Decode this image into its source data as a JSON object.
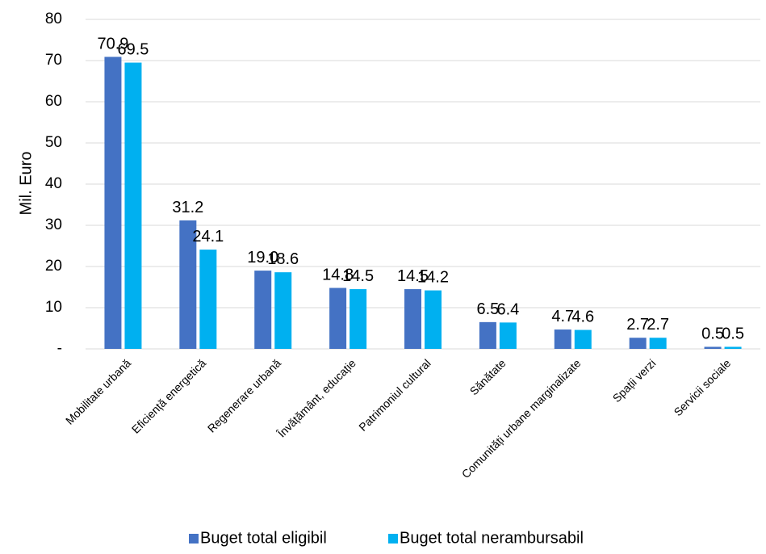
{
  "chart_data": {
    "type": "bar",
    "title": "",
    "ylabel": "Mil. Euro",
    "xlabel": "",
    "ylim": [
      0,
      80
    ],
    "yticks": [
      {
        "value": 0,
        "label": "-"
      },
      {
        "value": 10,
        "label": "10"
      },
      {
        "value": 20,
        "label": "20"
      },
      {
        "value": 30,
        "label": "30"
      },
      {
        "value": 40,
        "label": "40"
      },
      {
        "value": 50,
        "label": "50"
      },
      {
        "value": 60,
        "label": "60"
      },
      {
        "value": 70,
        "label": "70"
      },
      {
        "value": 80,
        "label": "80"
      }
    ],
    "grid": true,
    "legend_position": "bottom",
    "categories": [
      "Mobilitate urbană",
      "Eficiență energetică",
      "Regenerare urbană",
      "Învățământ, educație",
      "Patrimoniul cultural",
      "Sănătate",
      "Comunități urbane marginalizate",
      "Spații verzi",
      "Servicii sociale"
    ],
    "series": [
      {
        "name": "Buget total eligibil",
        "color": "#4472C4",
        "values": [
          70.9,
          31.2,
          19.0,
          14.8,
          14.5,
          6.5,
          4.7,
          2.7,
          0.5
        ],
        "labels": [
          "70.9",
          "31.2",
          "19.0",
          "14.8",
          "14.5",
          "6.5",
          "4.7",
          "2.7",
          "0.5"
        ]
      },
      {
        "name": "Buget total nerambursabil",
        "color": "#00B0F0",
        "values": [
          69.5,
          24.1,
          18.6,
          14.5,
          14.2,
          6.4,
          4.6,
          2.7,
          0.5
        ],
        "labels": [
          "69.5",
          "24.1",
          "18.6",
          "14.5",
          "14.2",
          "6.4",
          "4.6",
          "2.7",
          "0.5"
        ]
      }
    ]
  }
}
